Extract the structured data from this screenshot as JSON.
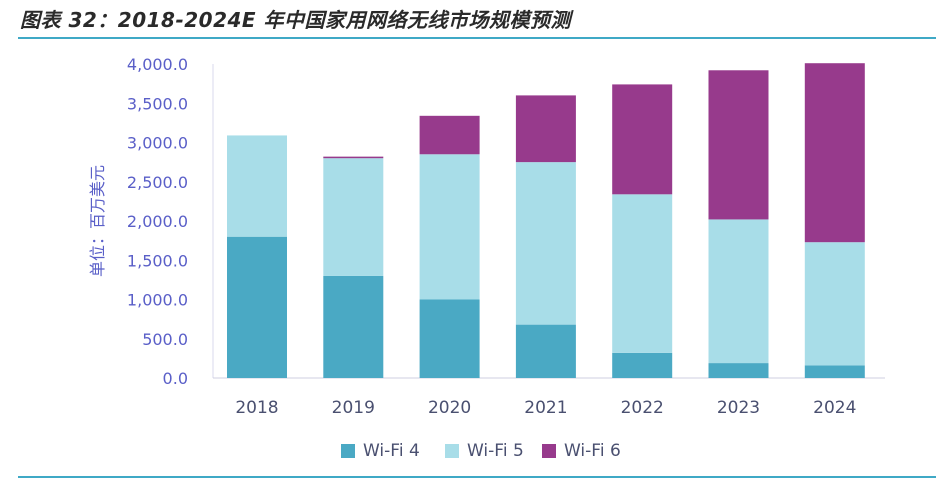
{
  "figure": {
    "title": "图表 32：2018-2024E 年中国家用网络无线市场规模预测"
  },
  "chart_data": {
    "type": "bar",
    "stacked": true,
    "categories": [
      "2018",
      "2019",
      "2020",
      "2021",
      "2022",
      "2023",
      "2024"
    ],
    "series": [
      {
        "name": "Wi-Fi 4",
        "color": "#4aa9c4",
        "values": [
          1800,
          1300,
          1000,
          680,
          320,
          190,
          160
        ]
      },
      {
        "name": "Wi-Fi 5",
        "color": "#a8dde8",
        "values": [
          1290,
          1500,
          1850,
          2070,
          2020,
          1830,
          1570
        ]
      },
      {
        "name": "Wi-Fi 6",
        "color": "#973a8c",
        "values": [
          0,
          20,
          490,
          850,
          1400,
          1900,
          2280
        ]
      }
    ],
    "ylabel": "单位：百万美元",
    "ylim": [
      0,
      4000
    ],
    "yticks": [
      0,
      500,
      1000,
      1500,
      2000,
      2500,
      3000,
      3500,
      4000
    ],
    "ytick_labels": [
      "0.0",
      "500.0",
      "1,000.0",
      "1,500.0",
      "2,000.0",
      "2,500.0",
      "3,000.0",
      "3,500.0",
      "4,000.0"
    ],
    "grid": false,
    "legend": "bottom"
  }
}
